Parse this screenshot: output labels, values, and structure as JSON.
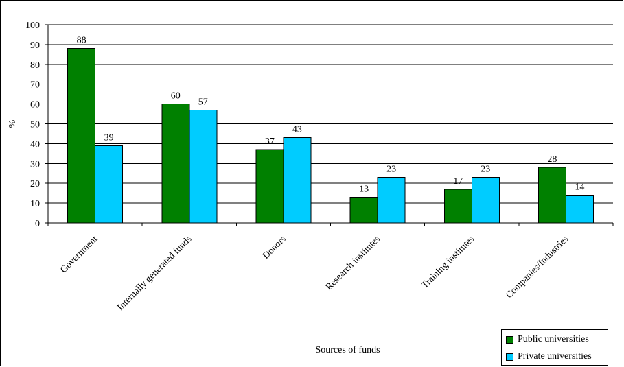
{
  "chart_data": {
    "type": "bar",
    "title": "",
    "xlabel": "Sources of funds",
    "ylabel": "%",
    "ylim": [
      0,
      100
    ],
    "yticks": [
      0,
      10,
      20,
      30,
      40,
      50,
      60,
      70,
      80,
      90,
      100
    ],
    "grid": true,
    "legend_position": "bottom-right",
    "categories": [
      "Government",
      "Internally generated funds",
      "Donors",
      "Research institutes",
      "Training institutes",
      "Companies/Industries"
    ],
    "series": [
      {
        "name": "Public universities",
        "color": "#008000",
        "values": [
          88,
          60,
          37,
          13,
          17,
          28
        ],
        "labels": [
          "88",
          "60",
          "37",
          "13",
          "17",
          "28"
        ]
      },
      {
        "name": "Private universities",
        "color": "#00CCFF",
        "values": [
          39,
          57,
          43,
          23,
          23,
          14
        ],
        "labels": [
          "39",
          "57",
          "43",
          "23",
          "23",
          "14"
        ]
      }
    ]
  }
}
